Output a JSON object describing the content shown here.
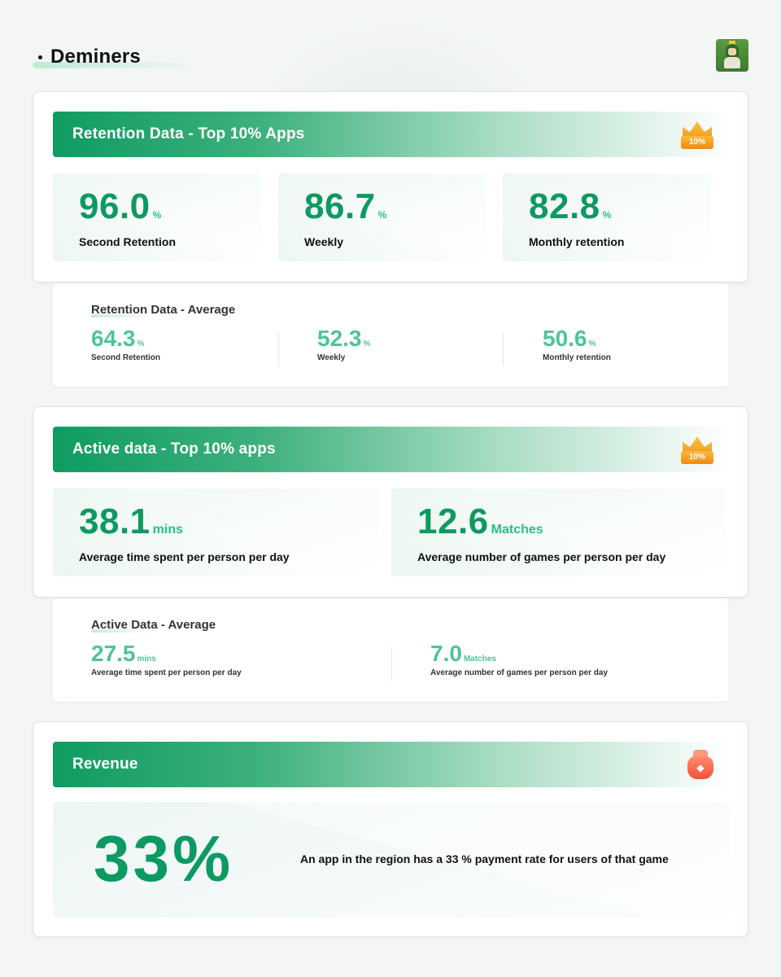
{
  "header": {
    "title": "Deminers",
    "game_icon": "pixel-character-icon"
  },
  "retention_top": {
    "title": "Retention Data - Top 10% Apps",
    "badge": "10%",
    "metrics": [
      {
        "value": "96.0",
        "unit": "%",
        "label": "Second Retention"
      },
      {
        "value": "86.7",
        "unit": "%",
        "label": "Weekly"
      },
      {
        "value": "82.8",
        "unit": "%",
        "label": "Monthly retention"
      }
    ]
  },
  "retention_avg": {
    "title": "Retention Data - Average",
    "metrics": [
      {
        "value": "64.3",
        "unit": "%",
        "label": "Second Retention"
      },
      {
        "value": "52.3",
        "unit": "%",
        "label": "Weekly"
      },
      {
        "value": "50.6",
        "unit": "%",
        "label": "Monthly retention"
      }
    ]
  },
  "active_top": {
    "title": "Active data - Top 10% apps",
    "badge": "10%",
    "metrics": [
      {
        "value": "38.1",
        "unit": "mins",
        "label": "Average time spent per person per day"
      },
      {
        "value": "12.6",
        "unit": "Matches",
        "label": "Average number of games per person per day"
      }
    ]
  },
  "active_avg": {
    "title": "Active Data - Average",
    "metrics": [
      {
        "value": "27.5",
        "unit": "mins",
        "label": "Average time spent per person per day"
      },
      {
        "value": "7.0",
        "unit": "Matches",
        "label": "Average number of games per person per day"
      }
    ]
  },
  "revenue": {
    "title": "Revenue",
    "icon": "money-bag-icon",
    "value": "33%",
    "description": "An app in the region has a 33 % payment rate for users of that game"
  },
  "colors": {
    "accent": "#0d9a62",
    "accent_light": "#27c187",
    "avg_green": "#4ec494",
    "badge_orange": "#f29a1d",
    "bag_red": "#f2503c"
  }
}
